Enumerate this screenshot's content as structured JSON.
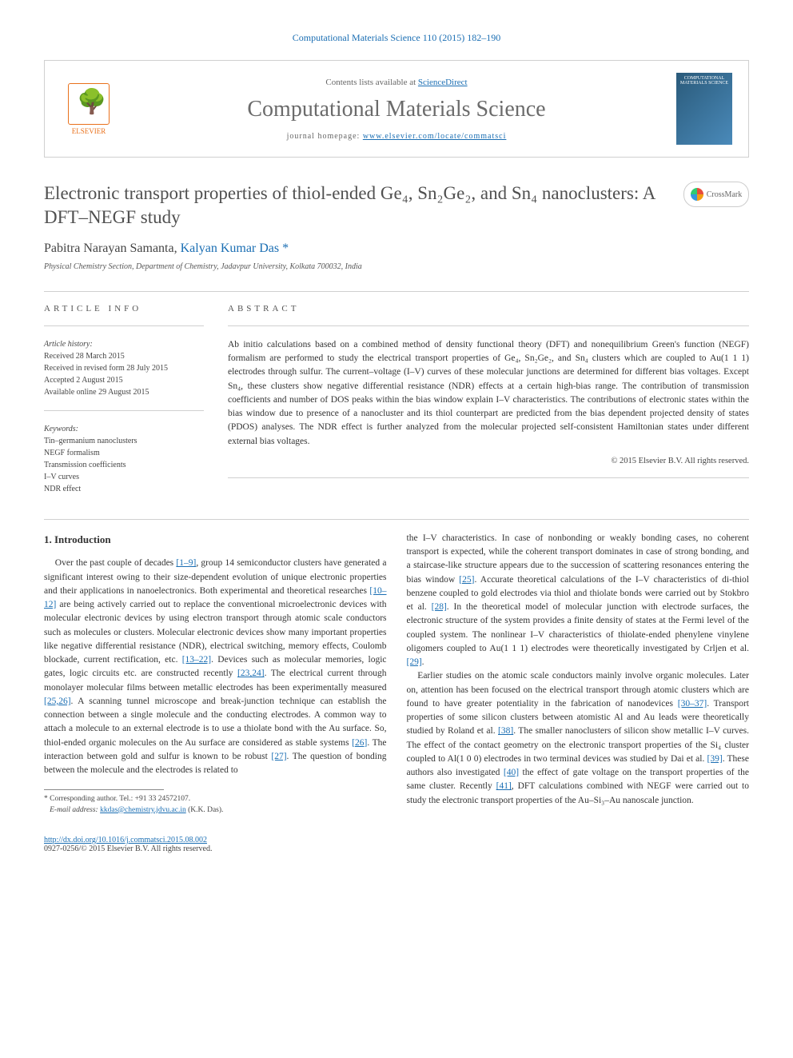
{
  "journal_ref": "Computational Materials Science 110 (2015) 182–190",
  "header": {
    "elsevier_label": "ELSEVIER",
    "contents_text": "Contents lists available at ",
    "contents_link": "ScienceDirect",
    "journal_name": "Computational Materials Science",
    "homepage_prefix": "journal homepage: ",
    "homepage_url": "www.elsevier.com/locate/commatsci",
    "cover_text": "COMPUTATIONAL MATERIALS SCIENCE"
  },
  "title": "Electronic transport properties of thiol-ended Ge₄, Sn₂Ge₂, and Sn₄ nanoclusters: A DFT–NEGF study",
  "crossmark_label": "CrossMark",
  "authors": {
    "a1": "Pabitra Narayan Samanta, ",
    "a2": "Kalyan Kumar Das ",
    "corr": "*"
  },
  "affiliation": "Physical Chemistry Section, Department of Chemistry, Jadavpur University, Kolkata 700032, India",
  "article_info": {
    "heading": "ARTICLE INFO",
    "history_label": "Article history:",
    "received": "Received 28 March 2015",
    "revised": "Received in revised form 28 July 2015",
    "accepted": "Accepted 2 August 2015",
    "online": "Available online 29 August 2015",
    "keywords_label": "Keywords:",
    "kw1": "Tin–germanium nanoclusters",
    "kw2": "NEGF formalism",
    "kw3": "Transmission coefficients",
    "kw4": "I–V curves",
    "kw5": "NDR effect"
  },
  "abstract": {
    "heading": "ABSTRACT",
    "text": "Ab initio calculations based on a combined method of density functional theory (DFT) and nonequilibrium Green's function (NEGF) formalism are performed to study the electrical transport properties of Ge₄, Sn₂Ge₂, and Sn₄ clusters which are coupled to Au(1 1 1) electrodes through sulfur. The current–voltage (I–V) curves of these molecular junctions are determined for different bias voltages. Except Sn₄, these clusters show negative differential resistance (NDR) effects at a certain high-bias range. The contribution of transmission coefficients and number of DOS peaks within the bias window explain I–V characteristics. The contributions of electronic states within the bias window due to presence of a nanocluster and its thiol counterpart are predicted from the bias dependent projected density of states (PDOS) analyses. The NDR effect is further analyzed from the molecular projected self-consistent Hamiltonian states under different external bias voltages.",
    "copyright": "© 2015 Elsevier B.V. All rights reserved."
  },
  "intro_heading": "1. Introduction",
  "col1": {
    "p1a": "Over the past couple of decades ",
    "r1": "[1–9]",
    "p1b": ", group 14 semiconductor clusters have generated a significant interest owing to their size-dependent evolution of unique electronic properties and their applications in nanoelectronics. Both experimental and theoretical researches ",
    "r2": "[10–12]",
    "p1c": " are being actively carried out to replace the conventional microelectronic devices with molecular electronic devices by using electron transport through atomic scale conductors such as molecules or clusters. Molecular electronic devices show many important properties like negative differential resistance (NDR), electrical switching, memory effects, Coulomb blockade, current rectification, etc. ",
    "r3": "[13–22]",
    "p1d": ". Devices such as molecular memories, logic gates, logic circuits etc. are constructed recently ",
    "r4": "[23,24]",
    "p1e": ". The electrical current through monolayer molecular films between metallic electrodes has been experimentally measured ",
    "r5": "[25,26]",
    "p1f": ". A scanning tunnel microscope and break-junction technique can establish the connection between a single molecule and the conducting electrodes. A common way to attach a molecule to an external electrode is to use a thiolate bond with the Au surface. So, thiol-ended organic molecules on the Au surface are considered as stable systems ",
    "r6": "[26]",
    "p1g": ". The interaction between gold and sulfur is known to be robust ",
    "r7": "[27]",
    "p1h": ". The question of bonding between the molecule and the electrodes is related to"
  },
  "col2": {
    "p1a": "the I–V characteristics. In case of nonbonding or weakly bonding cases, no coherent transport is expected, while the coherent transport dominates in case of strong bonding, and a staircase-like structure appears due to the succession of scattering resonances entering the bias window ",
    "r1": "[25]",
    "p1b": ". Accurate theoretical calculations of the I–V characteristics of di-thiol benzene coupled to gold electrodes via thiol and thiolate bonds were carried out by Stokbro et al. ",
    "r2": "[28]",
    "p1c": ". In the theoretical model of molecular junction with electrode surfaces, the electronic structure of the system provides a finite density of states at the Fermi level of the coupled system. The nonlinear I–V characteristics of thiolate-ended phenylene vinylene oligomers coupled to Au(1 1 1) electrodes were theoretically investigated by Crljen et al. ",
    "r3": "[29]",
    "p1d": ".",
    "p2a": "Earlier studies on the atomic scale conductors mainly involve organic molecules. Later on, attention has been focused on the electrical transport through atomic clusters which are found to have greater potentiality in the fabrication of nanodevices ",
    "r4": "[30–37]",
    "p2b": ". Transport properties of some silicon clusters between atomistic Al and Au leads were theoretically studied by Roland et al. ",
    "r5": "[38]",
    "p2c": ". The smaller nanoclusters of silicon show metallic I–V curves. The effect of the contact geometry on the electronic transport properties of the Si₄ cluster coupled to Al(1 0 0) electrodes in two terminal devices was studied by Dai et al. ",
    "r6": "[39]",
    "p2d": ". These authors also investigated ",
    "r7": "[40]",
    "p2e": " the effect of gate voltage on the transport properties of the same cluster. Recently ",
    "r8": "[41]",
    "p2f": ", DFT calculations combined with NEGF were carried out to study the electronic transport properties of the Au–Si₃–Au nanoscale junction."
  },
  "footnote": {
    "corr_label": "* Corresponding author. Tel.: +91 33 24572107.",
    "email_label": "E-mail address: ",
    "email": "kkdas@chemistry.jdvu.ac.in",
    "email_name": " (K.K. Das)."
  },
  "footer": {
    "doi": "http://dx.doi.org/10.1016/j.commatsci.2015.08.002",
    "issn_line": "0927-0256/© 2015 Elsevier B.V. All rights reserved."
  },
  "colors": {
    "link": "#1a6eb3",
    "text": "#333333",
    "heading": "#505050",
    "elsevier": "#E9711C",
    "border": "#d0d0d0"
  }
}
